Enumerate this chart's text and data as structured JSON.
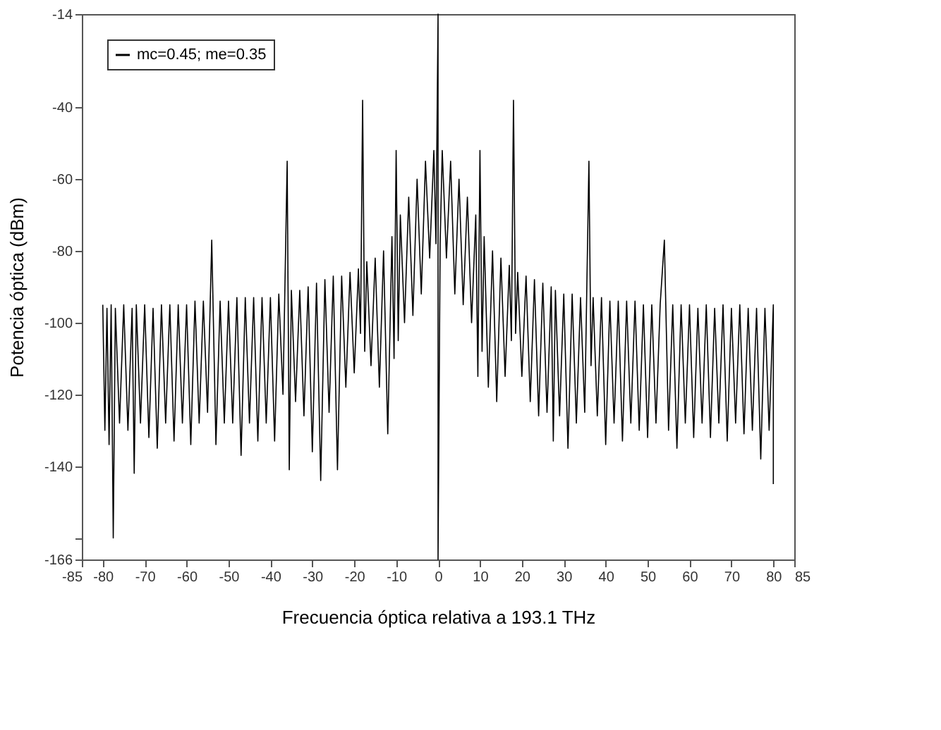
{
  "chart_data": {
    "type": "line",
    "xlabel": "Frecuencia óptica relativa a 193.1 THz",
    "ylabel": "Potencia óptica (dBm)",
    "xlim": [
      -85,
      85
    ],
    "xticks": [
      -85,
      -80,
      -70,
      -60,
      -50,
      -40,
      -30,
      -20,
      -10,
      0,
      10,
      20,
      30,
      40,
      50,
      60,
      70,
      80,
      85
    ],
    "ylim": [
      -166,
      -14
    ],
    "yticks": [
      -166,
      {
        "value": -160,
        "label": null
      },
      -140,
      -120,
      -100,
      -80,
      -60,
      -40,
      -14
    ],
    "grid": false,
    "legend": "top left",
    "marker": "none",
    "line_style": "solid",
    "series": [
      {
        "name": "mc=0.45; me=0.35",
        "color": "#000000",
        "x": [
          -80,
          -79.5,
          -79,
          -78.5,
          -78,
          -77.5,
          -77,
          -76,
          -75,
          -74,
          -73,
          -72.5,
          -72,
          -71,
          -70,
          -69,
          -68,
          -67,
          -66,
          -65,
          -64,
          -63,
          -62,
          -61,
          -60,
          -59,
          -58,
          -57,
          -56,
          -55,
          -54,
          -53,
          -52,
          -51,
          -50,
          -49,
          -48,
          -47,
          -46,
          -45,
          -44,
          -43,
          -42,
          -41,
          -40,
          -39,
          -38,
          -37,
          -36,
          -35.5,
          -35,
          -34,
          -33,
          -32,
          -31,
          -30,
          -29,
          -28,
          -27,
          -26,
          -25,
          -24,
          -23,
          -22,
          -21,
          -20,
          -19,
          -18.5,
          -18,
          -17.5,
          -17,
          -16,
          -15,
          -14,
          -13,
          -12,
          -11,
          -10.5,
          -10,
          -9.5,
          -9,
          -8,
          -7,
          -6,
          -5,
          -4,
          -3,
          -2,
          -1,
          -0.5,
          0,
          0,
          0.5,
          1,
          2,
          3,
          4,
          5,
          6,
          7,
          8,
          9,
          9.5,
          10,
          10.5,
          11,
          12,
          13,
          14,
          15,
          16,
          17,
          17.5,
          18,
          18.5,
          19,
          20,
          21,
          22,
          23,
          24,
          25,
          26,
          27,
          27.5,
          28,
          29,
          30,
          31,
          32,
          33,
          34,
          35,
          36,
          36.5,
          37,
          38,
          39,
          40,
          41,
          42,
          43,
          44,
          45,
          46,
          47,
          48,
          49,
          50,
          51,
          52,
          53,
          54,
          55,
          56,
          57,
          58,
          59,
          60,
          61,
          62,
          63,
          64,
          65,
          66,
          67,
          68,
          69,
          70,
          71,
          72,
          73,
          74,
          75,
          76,
          77,
          78,
          79,
          80,
          80
        ],
        "values": [
          -95,
          -130,
          -96,
          -134,
          -95,
          -160,
          -96,
          -128,
          -95,
          -130,
          -96,
          -142,
          -95,
          -128,
          -95,
          -132,
          -96,
          -135,
          -95,
          -128,
          -95,
          -133,
          -95,
          -128,
          -95,
          -134,
          -94,
          -128,
          -94,
          -125,
          -77,
          -134,
          -94,
          -128,
          -94,
          -128,
          -93,
          -137,
          -93,
          -128,
          -93,
          -133,
          -93,
          -128,
          -93,
          -133,
          -92,
          -120,
          -55,
          -141,
          -91,
          -122,
          -91,
          -126,
          -90,
          -136,
          -89,
          -144,
          -88,
          -125,
          -87,
          -141,
          -87,
          -118,
          -86,
          -114,
          -85,
          -103,
          -38,
          -108,
          -83,
          -112,
          -82,
          -118,
          -80,
          -131,
          -76,
          -110,
          -52,
          -105,
          -70,
          -100,
          -65,
          -98,
          -60,
          -92,
          -55,
          -82,
          -52,
          -78,
          -14,
          -166,
          -78,
          -52,
          -82,
          -55,
          -92,
          -60,
          -95,
          -65,
          -100,
          -70,
          -115,
          -52,
          -108,
          -76,
          -118,
          -80,
          -122,
          -82,
          -115,
          -84,
          -105,
          -38,
          -103,
          -86,
          -115,
          -87,
          -122,
          -88,
          -126,
          -89,
          -125,
          -90,
          -133,
          -91,
          -126,
          -92,
          -135,
          -92,
          -128,
          -93,
          -125,
          -55,
          -112,
          -93,
          -126,
          -93,
          -134,
          -94,
          -128,
          -94,
          -133,
          -94,
          -128,
          -94,
          -130,
          -95,
          -132,
          -95,
          -128,
          -95,
          -77,
          -130,
          -95,
          -135,
          -95,
          -128,
          -95,
          -132,
          -96,
          -128,
          -95,
          -132,
          -96,
          -128,
          -95,
          -133,
          -96,
          -128,
          -95,
          -131,
          -96,
          -130,
          -96,
          -138,
          -96,
          -130,
          -95,
          -145
        ]
      }
    ]
  }
}
